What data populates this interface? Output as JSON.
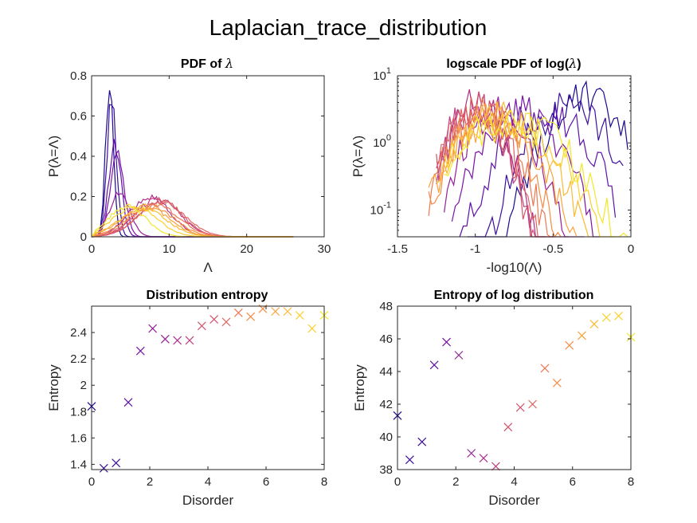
{
  "figure_title": "Laplacian_trace_distribution",
  "colors": {
    "palette": [
      "#1a0a8c",
      "#3b0f9e",
      "#5c10a8",
      "#7a13a6",
      "#95209a",
      "#ad2f8c",
      "#c1407d",
      "#d2526f",
      "#e06461",
      "#ec7753",
      "#f48c45",
      "#f9a23a",
      "#fbb932",
      "#f9d12c",
      "#f2e72a"
    ]
  },
  "chart_data": [
    {
      "type": "line",
      "title": "PDF of λ",
      "xlabel": "Λ",
      "ylabel": "P(λ=Λ)",
      "xlim": [
        0,
        30
      ],
      "ylim": [
        0,
        0.8
      ],
      "xticks": [
        0,
        10,
        20,
        30
      ],
      "yticks": [
        0,
        0.2,
        0.4,
        0.6,
        0.8
      ],
      "ytick_labels": [
        "0",
        "0.2",
        "0.4",
        "0.6",
        "0.8"
      ],
      "legend": "none",
      "grid": false,
      "peaks": [
        {
          "center": 2.3,
          "amp": 0.75,
          "width": 0.5
        },
        {
          "center": 2.6,
          "amp": 0.68,
          "width": 0.6
        },
        {
          "center": 3.0,
          "amp": 0.45,
          "width": 0.8
        },
        {
          "center": 3.3,
          "amp": 0.4,
          "width": 0.9
        },
        {
          "center": 3.6,
          "amp": 0.22,
          "width": 1.3
        },
        {
          "center": 7.5,
          "amp": 0.2,
          "width": 2.6
        },
        {
          "center": 8.5,
          "amp": 0.19,
          "width": 2.8
        },
        {
          "center": 8.8,
          "amp": 0.18,
          "width": 2.8
        },
        {
          "center": 9.0,
          "amp": 0.17,
          "width": 3.0
        },
        {
          "center": 8.2,
          "amp": 0.16,
          "width": 3.0
        },
        {
          "center": 7.6,
          "amp": 0.15,
          "width": 3.0
        },
        {
          "center": 7.0,
          "amp": 0.15,
          "width": 3.0
        },
        {
          "center": 6.6,
          "amp": 0.14,
          "width": 3.0
        },
        {
          "center": 5.6,
          "amp": 0.15,
          "width": 2.8
        },
        {
          "center": 4.6,
          "amp": 0.15,
          "width": 2.4
        }
      ]
    },
    {
      "type": "line",
      "title": "logscale PDF of log(λ)",
      "xlabel": "-log10(Λ)",
      "ylabel": "P(λ=Λ)",
      "yscale": "log",
      "xlim": [
        -1.5,
        0
      ],
      "ylim": [
        0.04,
        10
      ],
      "xticks": [
        -1.5,
        -1,
        -0.5,
        0
      ],
      "xtick_labels": [
        "-1.5",
        "-1",
        "-0.5",
        "0"
      ],
      "yticks": [
        0.1,
        1,
        10
      ],
      "ytick_bases": [
        "10",
        "10",
        "10"
      ],
      "ytick_exponents": [
        "-1",
        "0",
        "1"
      ],
      "legend": "none",
      "grid": false,
      "curves": [
        {
          "center": -0.3,
          "sigma": 0.16,
          "peak": 4.5,
          "lo": -1.0,
          "hi": -0.02
        },
        {
          "center": -0.4,
          "sigma": 0.17,
          "peak": 3.5,
          "lo": -1.05,
          "hi": -0.05
        },
        {
          "center": -0.55,
          "sigma": 0.18,
          "peak": 2.8,
          "lo": -1.1,
          "hi": -0.1
        },
        {
          "center": -0.7,
          "sigma": 0.16,
          "peak": 3.0,
          "lo": -1.15,
          "hi": -0.2
        },
        {
          "center": -0.85,
          "sigma": 0.14,
          "peak": 3.2,
          "lo": -1.2,
          "hi": -0.3
        },
        {
          "center": -0.98,
          "sigma": 0.12,
          "peak": 3.8,
          "lo": -1.25,
          "hi": -0.4
        },
        {
          "center": -1.0,
          "sigma": 0.12,
          "peak": 3.5,
          "lo": -1.25,
          "hi": -0.5
        },
        {
          "center": -1.0,
          "sigma": 0.12,
          "peak": 3.3,
          "lo": -1.25,
          "hi": -0.55
        },
        {
          "center": -0.98,
          "sigma": 0.13,
          "peak": 3.0,
          "lo": -1.25,
          "hi": -0.55
        },
        {
          "center": -0.95,
          "sigma": 0.14,
          "peak": 2.8,
          "lo": -1.3,
          "hi": -0.5
        },
        {
          "center": -0.92,
          "sigma": 0.15,
          "peak": 2.5,
          "lo": -1.3,
          "hi": -0.45
        },
        {
          "center": -0.88,
          "sigma": 0.18,
          "peak": 2.2,
          "lo": -1.3,
          "hi": -0.35
        },
        {
          "center": -0.84,
          "sigma": 0.2,
          "peak": 2.2,
          "lo": -1.25,
          "hi": -0.25
        },
        {
          "center": -0.8,
          "sigma": 0.22,
          "peak": 2.0,
          "lo": -1.2,
          "hi": -0.1
        },
        {
          "center": -0.76,
          "sigma": 0.24,
          "peak": 2.0,
          "lo": -1.2,
          "hi": -0.02
        }
      ]
    },
    {
      "type": "scatter",
      "title": "Distribution entropy",
      "xlabel": "Disorder",
      "ylabel": "Entropy",
      "xlim": [
        0,
        8
      ],
      "ylim": [
        1.36,
        2.6
      ],
      "xticks": [
        0,
        2,
        4,
        6,
        8
      ],
      "yticks": [
        1.4,
        1.6,
        1.8,
        2.0,
        2.2,
        2.4
      ],
      "ytick_labels": [
        "1.4",
        "1.6",
        "1.8",
        "2",
        "2.2",
        "2.4"
      ],
      "marker": "x",
      "legend": "none",
      "grid": false,
      "x": [
        0,
        0.42,
        0.84,
        1.26,
        1.68,
        2.1,
        2.53,
        2.95,
        3.37,
        3.79,
        4.21,
        4.63,
        5.05,
        5.47,
        5.89,
        6.32,
        6.74,
        7.16,
        7.58,
        8.0
      ],
      "y": [
        1.84,
        1.37,
        1.41,
        1.87,
        2.26,
        2.43,
        2.35,
        2.34,
        2.34,
        2.45,
        2.5,
        2.48,
        2.55,
        2.52,
        2.58,
        2.56,
        2.56,
        2.53,
        2.43,
        2.53
      ]
    },
    {
      "type": "scatter",
      "title": "Entropy of log distribution",
      "xlabel": "Disorder",
      "ylabel": "Entropy",
      "xlim": [
        0,
        8
      ],
      "ylim": [
        38,
        48
      ],
      "xticks": [
        0,
        2,
        4,
        6,
        8
      ],
      "yticks": [
        38,
        40,
        42,
        44,
        46,
        48
      ],
      "marker": "x",
      "legend": "none",
      "grid": false,
      "x": [
        0,
        0.42,
        0.84,
        1.26,
        1.68,
        2.1,
        2.53,
        2.95,
        3.37,
        3.79,
        4.21,
        4.63,
        5.05,
        5.47,
        5.89,
        6.32,
        6.74,
        7.16,
        7.58,
        8.0
      ],
      "y": [
        41.3,
        38.6,
        39.7,
        44.4,
        45.8,
        45.0,
        39.0,
        38.7,
        38.2,
        40.6,
        41.8,
        42.0,
        44.2,
        43.3,
        45.6,
        46.2,
        46.9,
        47.3,
        47.4,
        46.1
      ]
    }
  ]
}
